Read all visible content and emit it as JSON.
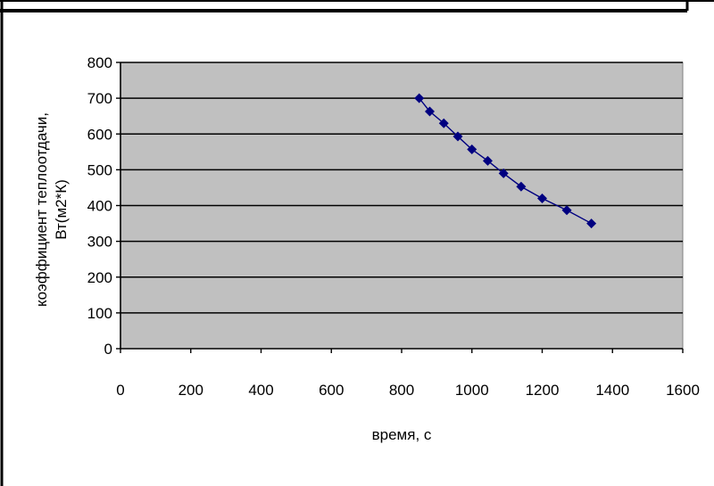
{
  "chart_data": {
    "type": "scatter",
    "title": "",
    "xlabel": "время, с",
    "ylabel_lines": [
      "коэффициент теплоотдачи,",
      "Вт(м2*К)"
    ],
    "xlim": [
      0,
      1600
    ],
    "ylim": [
      0,
      800
    ],
    "x_ticks": [
      0,
      200,
      400,
      600,
      800,
      1000,
      1200,
      1400,
      1600
    ],
    "y_ticks": [
      0,
      100,
      200,
      300,
      400,
      500,
      600,
      700,
      800
    ],
    "grid": "horizontal",
    "legend": "none",
    "colors": {
      "plot_background": "#c0c0c0",
      "marker": "#000080",
      "line": "#000080",
      "gridline": "#000000"
    },
    "series": [
      {
        "marker": "diamond",
        "x": [
          850,
          880,
          920,
          960,
          1000,
          1045,
          1090,
          1140,
          1200,
          1270,
          1340
        ],
        "y": [
          700,
          663,
          630,
          593,
          557,
          525,
          490,
          453,
          420,
          387,
          350
        ]
      }
    ]
  }
}
